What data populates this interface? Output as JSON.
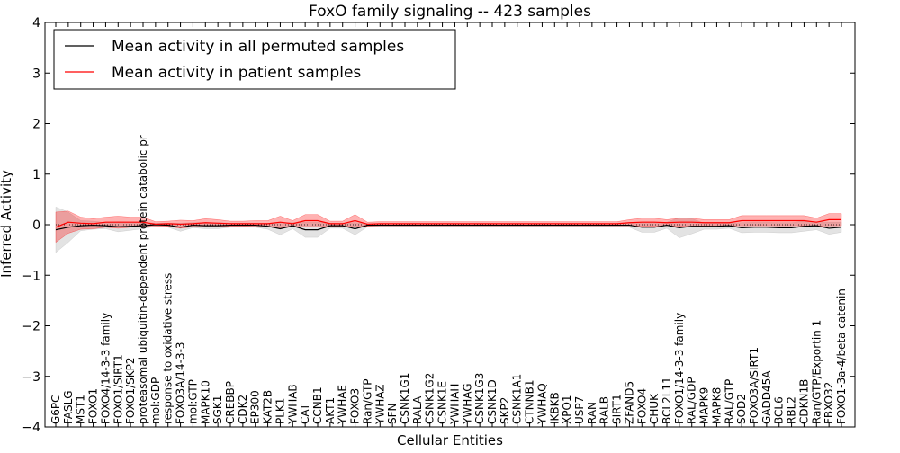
{
  "chart_data": {
    "type": "line",
    "title": "FoxO family signaling -- 423 samples",
    "xlabel": "Cellular Entities",
    "ylabel": "Inferred Activity",
    "ylim": [
      -4,
      4
    ],
    "yticks": [
      -4,
      -3,
      -2,
      -1,
      0,
      1,
      2,
      3,
      4
    ],
    "ytick_labels": [
      "−4",
      "−3",
      "−2",
      "−1",
      "0",
      "1",
      "2",
      "3",
      "4"
    ],
    "legend_position": "top-left",
    "categories": [
      "G6PC",
      "FASLG",
      "MST1",
      "FOXO1",
      "FOXO4/14-3-3 family",
      "FOXO1/SIRT1",
      "FOXO1/SKP2",
      "proteasomal ubiquitin-dependent protein catabolic pr",
      "mol:GDP",
      "response to oxidative stress",
      "FOXO3A/14-3-3",
      "mol:GTP",
      "MAPK10",
      "SGK1",
      "CREBBP",
      "CDK2",
      "EP300",
      "KAT2B",
      "PLK1",
      "YWHAB",
      "CAT",
      "CCNB1",
      "AKT1",
      "YWHAE",
      "FOXO3",
      "Ran/GTP",
      "YWHAZ",
      "SFN",
      "CSNK1G1",
      "RALA",
      "CSNK1G2",
      "CSNK1E",
      "YWHAH",
      "YWHAG",
      "CSNK1G3",
      "CSNK1D",
      "SKP2",
      "CSNK1A1",
      "CTNNB1",
      "YWHAQ",
      "IKBKB",
      "XPO1",
      "USP7",
      "RAN",
      "RALB",
      "SIRT1",
      "ZFAND5",
      "FOXO4",
      "CHUK",
      "BCL2L11",
      "FOXO1/14-3-3 family",
      "RAL/GDP",
      "MAPK9",
      "MAPK8",
      "RAL/GTP",
      "SOD2",
      "FOXO3A/SIRT1",
      "GADD45A",
      "BCL6",
      "RBL2",
      "CDKN1B",
      "Ran/GTP/Exportin 1",
      "FBXO32",
      "FOXO1-3a-4/beta catenin"
    ],
    "series": [
      {
        "name": "Mean activity in all permuted samples",
        "color": "#000000",
        "band_color": "#b0b0b0",
        "values": [
          -0.1,
          -0.05,
          -0.02,
          -0.01,
          -0.02,
          -0.04,
          -0.03,
          -0.02,
          0,
          -0.01,
          -0.05,
          -0.01,
          -0.02,
          -0.02,
          -0.01,
          -0.01,
          -0.01,
          -0.03,
          -0.08,
          -0.02,
          -0.1,
          -0.1,
          -0.02,
          -0.02,
          -0.08,
          -0.01,
          -0.01,
          -0.01,
          -0.01,
          -0.01,
          -0.01,
          -0.01,
          -0.01,
          -0.01,
          -0.01,
          -0.01,
          -0.01,
          -0.01,
          -0.01,
          -0.01,
          -0.01,
          -0.01,
          -0.01,
          -0.01,
          -0.01,
          -0.01,
          -0.01,
          -0.05,
          -0.05,
          -0.01,
          -0.06,
          -0.03,
          -0.03,
          -0.03,
          -0.02,
          -0.06,
          -0.05,
          -0.05,
          -0.06,
          -0.06,
          -0.03,
          -0.02,
          -0.07,
          -0.05
        ],
        "band_half_width": [
          0.45,
          0.3,
          0.1,
          0.08,
          0.06,
          0.1,
          0.08,
          0.06,
          0.03,
          0.04,
          0.08,
          0.05,
          0.06,
          0.06,
          0.04,
          0.04,
          0.04,
          0.06,
          0.12,
          0.06,
          0.15,
          0.15,
          0.05,
          0.05,
          0.12,
          0.03,
          0.03,
          0.03,
          0.03,
          0.03,
          0.03,
          0.03,
          0.03,
          0.03,
          0.03,
          0.03,
          0.03,
          0.03,
          0.03,
          0.03,
          0.03,
          0.03,
          0.03,
          0.03,
          0.03,
          0.03,
          0.04,
          0.1,
          0.1,
          0.06,
          0.2,
          0.15,
          0.06,
          0.06,
          0.05,
          0.1,
          0.1,
          0.1,
          0.1,
          0.1,
          0.1,
          0.08,
          0.12,
          0.1
        ]
      },
      {
        "name": "Mean activity in patient samples",
        "color": "#ff0000",
        "band_color": "#ff0000",
        "values": [
          -0.05,
          0.05,
          0.03,
          0.02,
          0.05,
          0.05,
          0.05,
          0.05,
          0.01,
          0.02,
          0.01,
          0.02,
          0.04,
          0.03,
          0.02,
          0.02,
          0.02,
          0.02,
          0.05,
          0.02,
          0.08,
          0.08,
          0.02,
          0.02,
          0.08,
          0.01,
          0.02,
          0.02,
          0.02,
          0.02,
          0.02,
          0.02,
          0.02,
          0.02,
          0.02,
          0.02,
          0.02,
          0.02,
          0.02,
          0.02,
          0.02,
          0.02,
          0.02,
          0.02,
          0.02,
          0.02,
          0.04,
          0.05,
          0.05,
          0.04,
          0.05,
          0.05,
          0.04,
          0.04,
          0.04,
          0.08,
          0.08,
          0.08,
          0.08,
          0.08,
          0.08,
          0.05,
          0.1,
          0.1
        ],
        "band_half_width": [
          0.3,
          0.22,
          0.12,
          0.1,
          0.1,
          0.12,
          0.1,
          0.1,
          0.05,
          0.05,
          0.08,
          0.06,
          0.08,
          0.07,
          0.05,
          0.05,
          0.06,
          0.06,
          0.12,
          0.06,
          0.12,
          0.12,
          0.05,
          0.05,
          0.12,
          0.04,
          0.04,
          0.04,
          0.04,
          0.04,
          0.04,
          0.04,
          0.04,
          0.04,
          0.04,
          0.04,
          0.04,
          0.04,
          0.04,
          0.04,
          0.04,
          0.04,
          0.04,
          0.04,
          0.04,
          0.04,
          0.06,
          0.08,
          0.08,
          0.06,
          0.08,
          0.08,
          0.06,
          0.06,
          0.06,
          0.1,
          0.1,
          0.1,
          0.1,
          0.1,
          0.1,
          0.08,
          0.12,
          0.12
        ]
      }
    ]
  }
}
